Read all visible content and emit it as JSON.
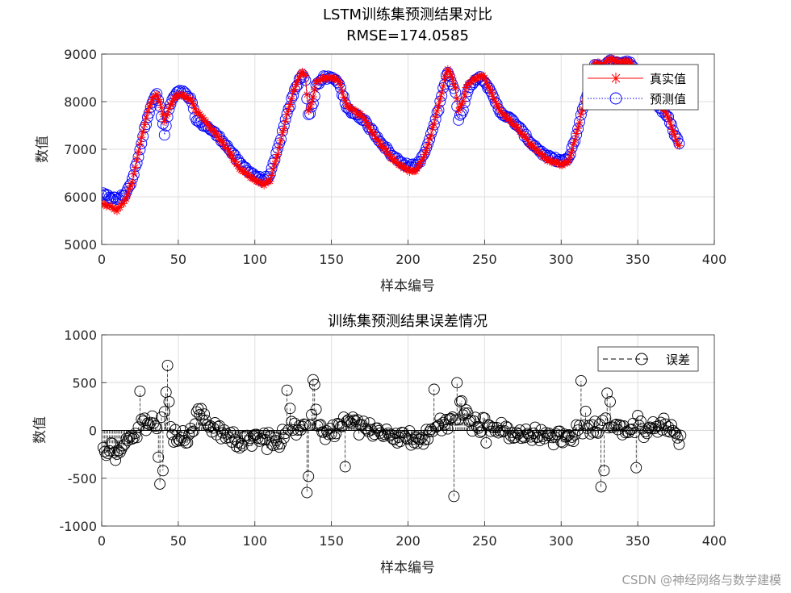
{
  "watermark": "CSDN @神经网络与数学建模",
  "chart_data": [
    {
      "type": "line",
      "title": "LSTM训练集预测结果对比",
      "subtitle": "RMSE=174.0585",
      "xlabel": "样本编号",
      "ylabel": "数值",
      "xlim": [
        0,
        400
      ],
      "ylim": [
        5000,
        9000
      ],
      "xticks": [
        "0",
        "50",
        "100",
        "150",
        "200",
        "250",
        "300",
        "350",
        "400"
      ],
      "yticks": [
        "5000",
        "6000",
        "7000",
        "8000",
        "9000"
      ],
      "grid": true,
      "legend": "top-right",
      "colors": {
        "actual": "#ff0000",
        "predicted": "#0000ff"
      },
      "keypoints": {
        "x": [
          0,
          5,
          10,
          15,
          20,
          25,
          30,
          33,
          36,
          38,
          41,
          44,
          47,
          50,
          53,
          58,
          62,
          70,
          80,
          90,
          100,
          105,
          110,
          115,
          120,
          125,
          129,
          131,
          133,
          135,
          138,
          140,
          145,
          150,
          155,
          160,
          170,
          180,
          190,
          200,
          205,
          210,
          215,
          220,
          224,
          226,
          228,
          231,
          233,
          236,
          238,
          242,
          245,
          248,
          250,
          253,
          260,
          270,
          280,
          290,
          300,
          305,
          310,
          315,
          318,
          320,
          322,
          325,
          327,
          330,
          333,
          336,
          339,
          342,
          345,
          348,
          352,
          356,
          360,
          365,
          370,
          375,
          377
        ],
        "actual": [
          5850,
          5800,
          5720,
          5900,
          6300,
          7100,
          7800,
          8050,
          8150,
          8000,
          7600,
          7850,
          8050,
          8150,
          8150,
          8050,
          7800,
          7500,
          7100,
          6600,
          6350,
          6250,
          6350,
          6900,
          7600,
          8200,
          8500,
          8650,
          8550,
          7800,
          8100,
          8400,
          8500,
          8500,
          8450,
          7900,
          7700,
          7200,
          6800,
          6550,
          6550,
          6800,
          7300,
          7900,
          8500,
          8700,
          8550,
          8300,
          7800,
          8000,
          8300,
          8450,
          8500,
          8550,
          8500,
          8300,
          7800,
          7500,
          7100,
          6800,
          6650,
          6750,
          7300,
          8000,
          8300,
          8600,
          8800,
          8800,
          8700,
          8850,
          8900,
          8850,
          8800,
          8850,
          8800,
          8700,
          8300,
          8200,
          8100,
          7900,
          7700,
          7200,
          7050
        ],
        "predicted": [
          6050,
          6000,
          5950,
          6050,
          6350,
          7000,
          7700,
          8000,
          8150,
          7900,
          7300,
          7850,
          8100,
          8200,
          8200,
          8050,
          7600,
          7450,
          7150,
          6700,
          6450,
          6350,
          6450,
          7000,
          7600,
          8150,
          8450,
          8600,
          8450,
          7700,
          7950,
          8350,
          8500,
          8500,
          8400,
          7850,
          7650,
          7250,
          6850,
          6650,
          6650,
          6850,
          7300,
          7850,
          8400,
          8650,
          8450,
          8200,
          7600,
          7850,
          8150,
          8400,
          8500,
          8500,
          8450,
          8250,
          7800,
          7550,
          7150,
          6850,
          6750,
          6800,
          7300,
          7950,
          8250,
          8550,
          8750,
          8750,
          8650,
          8800,
          8850,
          8850,
          8800,
          8850,
          8800,
          8650,
          8300,
          8200,
          8050,
          7850,
          7650,
          7250,
          7150
        ]
      }
    },
    {
      "type": "scatter",
      "title": "训练集预测结果误差情况",
      "xlabel": "样本编号",
      "ylabel": "数值",
      "xlim": [
        0,
        400
      ],
      "ylim": [
        -1000,
        1000
      ],
      "xticks": [
        "0",
        "50",
        "100",
        "150",
        "200",
        "250",
        "300",
        "350",
        "400"
      ],
      "yticks": [
        "-1000",
        "-500",
        "0",
        "500",
        "1000"
      ],
      "grid": true,
      "legend": "top-right",
      "series": [
        {
          "name": "误差",
          "color": "#000000"
        }
      ],
      "spikes": {
        "x": [
          24,
          32,
          36,
          37,
          39,
          41,
          42,
          43,
          120,
          122,
          133,
          134,
          137,
          138,
          139,
          158,
          216,
          229,
          231,
          233,
          234,
          250,
          312,
          315,
          325,
          327,
          329,
          331,
          348
        ],
        "y": [
          410,
          150,
          -280,
          -560,
          -420,
          400,
          680,
          300,
          420,
          230,
          -650,
          -480,
          530,
          480,
          220,
          -380,
          430,
          -690,
          500,
          300,
          310,
          -130,
          520,
          200,
          -590,
          -420,
          390,
          300,
          -390
        ]
      }
    }
  ],
  "legends": [
    {
      "items": [
        {
          "label": "真实值"
        },
        {
          "label": "预测值"
        }
      ]
    },
    {
      "items": [
        {
          "label": "误差"
        }
      ]
    }
  ]
}
